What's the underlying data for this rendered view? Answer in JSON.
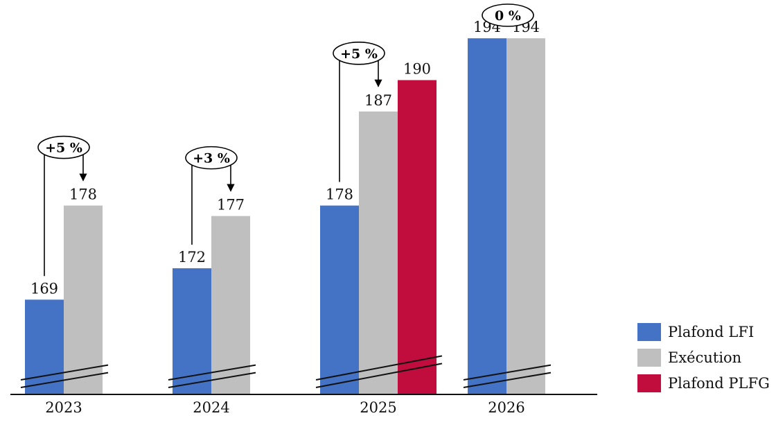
{
  "chart_data": {
    "type": "bar",
    "categories": [
      "2023",
      "2024",
      "2025",
      "2026"
    ],
    "series": [
      {
        "name": "Plafond LFI",
        "color": "#4472c4",
        "values": [
          169,
          172,
          178,
          194
        ]
      },
      {
        "name": "Exécution",
        "color": "#bfbfbf",
        "values": [
          178,
          177,
          187,
          194
        ]
      },
      {
        "name": "Plafond PLFG",
        "color": "#c00d3e",
        "values": [
          null,
          null,
          190,
          null
        ]
      }
    ],
    "data_labels": [
      [
        "169",
        "172",
        "178",
        "194"
      ],
      [
        "178",
        "177",
        "187",
        "194"
      ],
      [
        null,
        null,
        "190",
        null
      ]
    ],
    "annotations": [
      {
        "category": "2023",
        "text": "+5 %"
      },
      {
        "category": "2024",
        "text": "+3 %"
      },
      {
        "category": "2025",
        "text": "+5 %"
      },
      {
        "category": "2026",
        "text": "0 %"
      }
    ],
    "axis_break": true,
    "ylim": [
      160,
      197
    ],
    "grid": false,
    "legend_position": "bottom-right"
  }
}
